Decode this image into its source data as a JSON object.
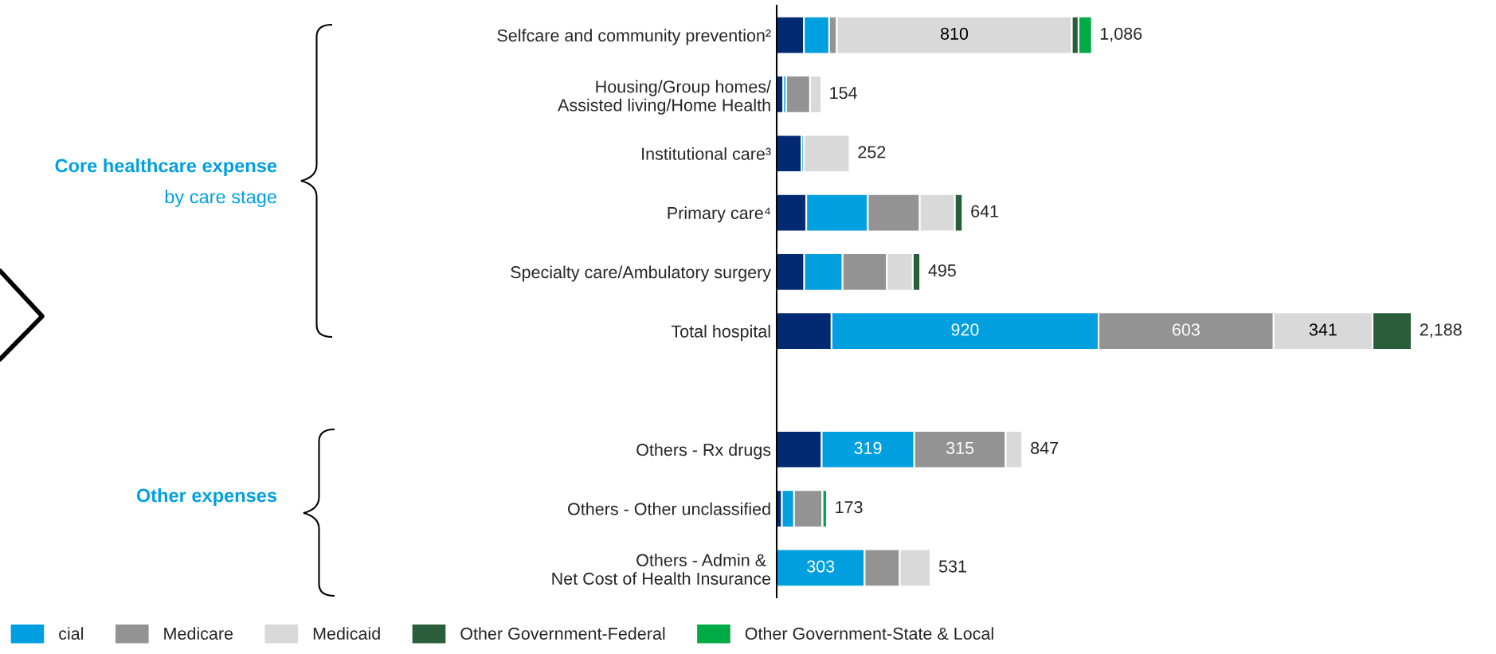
{
  "chart_data": {
    "type": "bar",
    "orientation": "horizontal",
    "stacked": true,
    "categories": [
      "Selfcare and community prevention²",
      "Housing/Group homes/\nAssisted living/Home Health",
      "Institutional care³",
      "Primary care⁴",
      "Specialty care/Ambulatory surgery",
      "Total hospital",
      null,
      "Others - Rx drugs",
      "Others - Other unclassified",
      "Others - Admin & \nNet Cost of Health Insurance"
    ],
    "series": [
      {
        "color": "#012a72",
        "values": [
          94,
          23,
          86,
          102,
          95,
          189,
          null,
          155,
          18,
          null
        ]
      },
      {
        "name": "cial",
        "color": "#009fe0",
        "values": [
          87,
          10,
          8,
          212,
          132,
          920,
          null,
          319,
          42,
          303
        ],
        "value_labels": [
          null,
          null,
          null,
          null,
          null,
          "920",
          null,
          "319",
          null,
          "303"
        ]
      },
      {
        "name": "Medicare",
        "color": "#939393",
        "values": [
          26,
          82,
          null,
          179,
          153,
          603,
          null,
          315,
          98,
          121
        ],
        "value_labels": [
          null,
          null,
          null,
          null,
          null,
          "603",
          null,
          "315",
          null,
          null
        ]
      },
      {
        "name": "Medicaid",
        "color": "#d9d9d9",
        "values": [
          810,
          39,
          158,
          121,
          89,
          341,
          null,
          58,
          null,
          107
        ],
        "value_labels": [
          "810",
          null,
          null,
          null,
          null,
          "341",
          null,
          null,
          null,
          null
        ]
      },
      {
        "name": "Other Government-Federal",
        "color": "#2a5e3a",
        "values": [
          23,
          null,
          null,
          27,
          26,
          135,
          null,
          null,
          null,
          null
        ]
      },
      {
        "name": "Other Government-State & Local",
        "color": "#00aa44",
        "values": [
          46,
          null,
          null,
          null,
          null,
          null,
          null,
          null,
          15,
          null
        ]
      }
    ],
    "totals": [
      "1,086",
      "154",
      "252",
      "641",
      "495",
      "2,188",
      null,
      "847",
      "173",
      "531"
    ],
    "annotations": [
      "Core healthcare expense",
      "by care stage",
      "Other expenses"
    ],
    "legend": "bottom"
  }
}
